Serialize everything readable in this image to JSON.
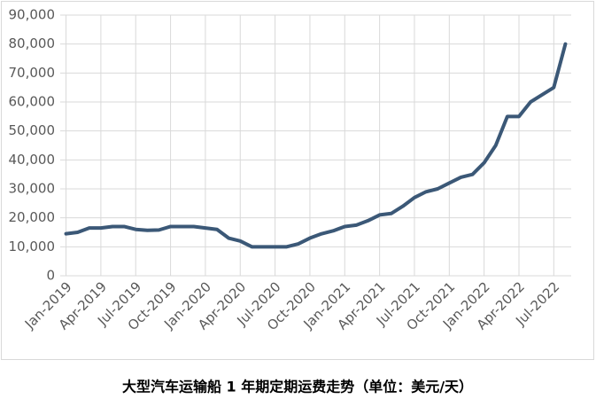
{
  "chart_data": {
    "type": "line",
    "title": "大型汽车运输船 1 年期定期运费走势（单位：美元/天）",
    "categories": [
      "Jan-2019",
      null,
      null,
      "Apr-2019",
      null,
      null,
      "Jul-2019",
      null,
      null,
      "Oct-2019",
      null,
      null,
      "Jan-2020",
      null,
      null,
      "Apr-2020",
      null,
      null,
      "Jul-2020",
      null,
      null,
      "Oct-2020",
      null,
      null,
      "Jan-2021",
      null,
      null,
      "Apr-2021",
      null,
      null,
      "Jul-2021",
      null,
      null,
      "Oct-2021",
      null,
      null,
      "Jan-2022",
      null,
      null,
      "Apr-2022",
      null,
      null,
      "Jul-2022",
      null
    ],
    "values": [
      14500,
      15000,
      16500,
      16500,
      17000,
      17000,
      16000,
      15700,
      15800,
      17000,
      17000,
      17000,
      16500,
      16000,
      13000,
      12000,
      10000,
      10000,
      10000,
      10000,
      11000,
      13000,
      14500,
      15500,
      17000,
      17500,
      19000,
      21000,
      21500,
      24000,
      27000,
      29000,
      30000,
      32000,
      34000,
      35000,
      39000,
      45000,
      55000,
      55000,
      60000,
      62500,
      65000,
      80000
    ],
    "color": "#3b5877",
    "ylim": [
      0,
      90000
    ],
    "yticks": [
      0,
      {
        "value": 10000,
        "label": "10,000"
      },
      {
        "value": 20000,
        "label": "20,000"
      },
      {
        "value": 30000,
        "label": "30,000"
      },
      {
        "value": 40000,
        "label": "40,000"
      },
      {
        "value": 50000,
        "label": "50,000"
      },
      {
        "value": 60000,
        "label": "60,000"
      },
      {
        "value": 70000,
        "label": "70,000"
      },
      {
        "value": 80000,
        "label": "80,000"
      },
      {
        "value": 90000,
        "label": "90,000"
      }
    ],
    "grid": true
  }
}
